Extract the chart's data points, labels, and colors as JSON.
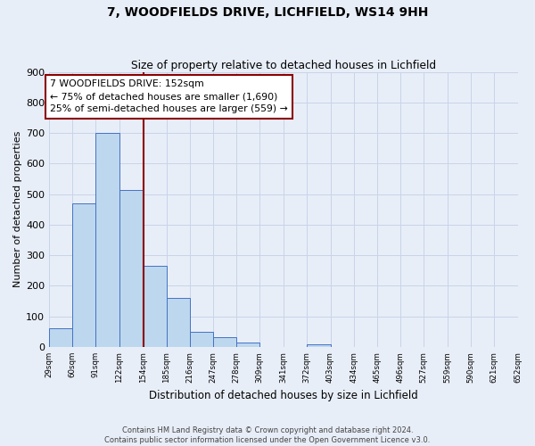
{
  "title": "7, WOODFIELDS DRIVE, LICHFIELD, WS14 9HH",
  "subtitle": "Size of property relative to detached houses in Lichfield",
  "xlabel": "Distribution of detached houses by size in Lichfield",
  "ylabel": "Number of detached properties",
  "bin_edges": [
    29,
    60,
    91,
    122,
    154,
    185,
    216,
    247,
    278,
    309,
    341,
    372,
    403,
    434,
    465,
    496,
    527,
    559,
    590,
    621,
    652
  ],
  "bin_labels": [
    "29sqm",
    "60sqm",
    "91sqm",
    "122sqm",
    "154sqm",
    "185sqm",
    "216sqm",
    "247sqm",
    "278sqm",
    "309sqm",
    "341sqm",
    "372sqm",
    "403sqm",
    "434sqm",
    "465sqm",
    "496sqm",
    "527sqm",
    "559sqm",
    "590sqm",
    "621sqm",
    "652sqm"
  ],
  "bar_heights": [
    60,
    470,
    700,
    515,
    265,
    160,
    48,
    33,
    13,
    0,
    0,
    10,
    0,
    0,
    0,
    0,
    0,
    0,
    0,
    0
  ],
  "bar_color": "#bdd7ee",
  "bar_edge_color": "#4472c4",
  "vline_color": "#8b0000",
  "vline_x": 154,
  "annotation_title": "7 WOODFIELDS DRIVE: 152sqm",
  "annotation_line1": "← 75% of detached houses are smaller (1,690)",
  "annotation_line2": "25% of semi-detached houses are larger (559) →",
  "annotation_box_color": "#ffffff",
  "annotation_box_edge": "#8b0000",
  "ylim": [
    0,
    900
  ],
  "yticks": [
    0,
    100,
    200,
    300,
    400,
    500,
    600,
    700,
    800,
    900
  ],
  "grid_color": "#c8d4e8",
  "bg_color": "#e8eef8",
  "footer_line1": "Contains HM Land Registry data © Crown copyright and database right 2024.",
  "footer_line2": "Contains public sector information licensed under the Open Government Licence v3.0."
}
